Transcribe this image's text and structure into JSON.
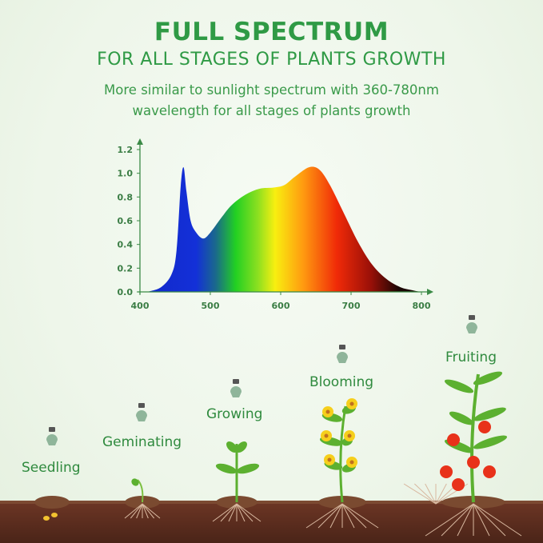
{
  "header": {
    "title": "FULL SPECTRUM",
    "subtitle": "FOR ALL STAGES OF PLANTS GROWTH",
    "description_line1": "More similar to sunlight spectrum with 360-780nm",
    "description_line2": "wavelength for all stages of plants growth"
  },
  "stages": [
    {
      "label": "Seedling"
    },
    {
      "label": "Geminating"
    },
    {
      "label": "Growing"
    },
    {
      "label": "Blooming"
    },
    {
      "label": "Fruiting"
    }
  ],
  "colors": {
    "title_green": "#2f9a45",
    "soil": "#5a2c1d"
  },
  "chart_data": {
    "type": "area",
    "title": "",
    "xlabel": "",
    "ylabel": "",
    "xlim": [
      400,
      800
    ],
    "ylim": [
      0,
      1.2
    ],
    "xticks": [
      "400",
      "500",
      "600",
      "700",
      "800"
    ],
    "yticks": [
      "0.0",
      "0.2",
      "0.4",
      "0.6",
      "0.8",
      "1.0",
      "1.2"
    ],
    "grid": false,
    "x": [
      410,
      430,
      445,
      452,
      458,
      462,
      466,
      472,
      480,
      490,
      500,
      515,
      530,
      550,
      570,
      590,
      605,
      620,
      640,
      655,
      670,
      690,
      710,
      730,
      750,
      770,
      790,
      800
    ],
    "y": [
      0,
      0.04,
      0.15,
      0.35,
      0.9,
      1.05,
      0.85,
      0.6,
      0.5,
      0.45,
      0.5,
      0.62,
      0.73,
      0.82,
      0.87,
      0.88,
      0.9,
      0.97,
      1.05,
      1.03,
      0.9,
      0.66,
      0.42,
      0.23,
      0.11,
      0.04,
      0.01,
      0
    ]
  }
}
